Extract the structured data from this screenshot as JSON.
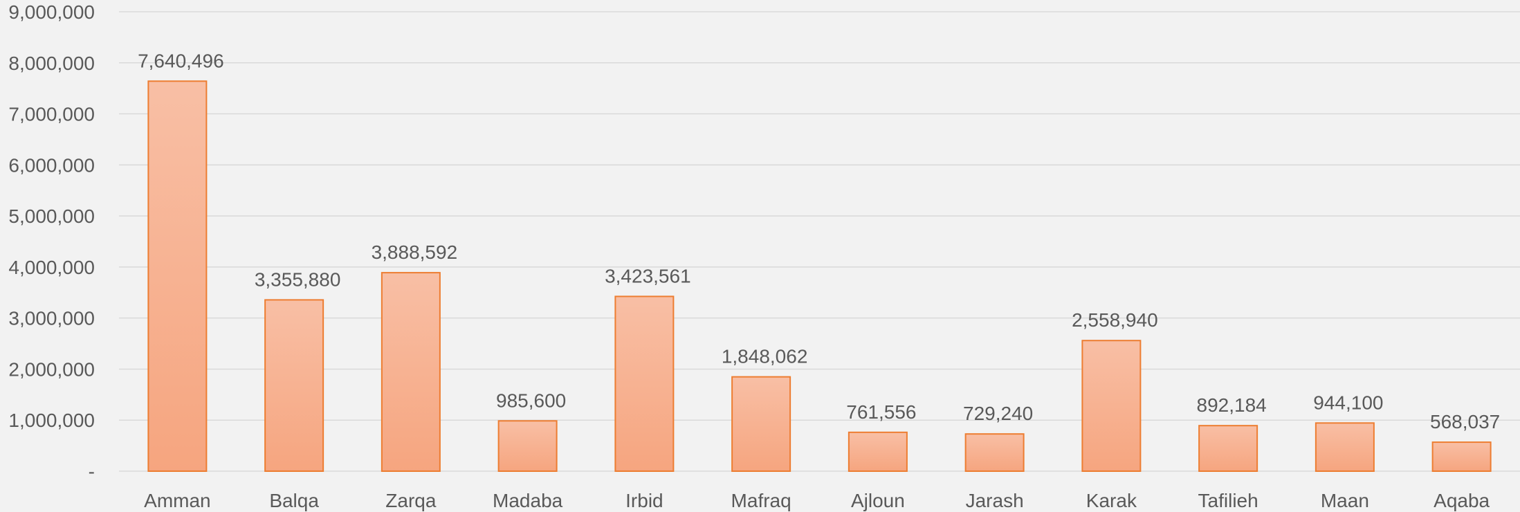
{
  "chart_data": {
    "type": "bar",
    "categories": [
      "Amman",
      "Balqa",
      "Zarqa",
      "Madaba",
      "Irbid",
      "Mafraq",
      "Ajloun",
      "Jarash",
      "Karak",
      "Tafilieh",
      "Maan",
      "Aqaba"
    ],
    "values": [
      7640496,
      3355880,
      3888592,
      985600,
      3423561,
      1848062,
      761556,
      729240,
      2558940,
      892184,
      944100,
      568037
    ],
    "value_labels": [
      "7,640,496",
      "3,355,880",
      "3,888,592",
      "985,600",
      "3,423,561",
      "1,848,062",
      "761,556",
      "729,240",
      "2,558,940",
      "892,184",
      "944,100",
      "568,037"
    ],
    "y_ticks": [
      0,
      1000000,
      2000000,
      3000000,
      4000000,
      5000000,
      6000000,
      7000000,
      8000000,
      9000000
    ],
    "y_tick_labels": [
      "-",
      "1,000,000",
      "2,000,000",
      "3,000,000",
      "4,000,000",
      "5,000,000",
      "6,000,000",
      "7,000,000",
      "8,000,000",
      "9,000,000"
    ],
    "ylim": [
      0,
      9000000
    ],
    "grid": true,
    "legend": "none",
    "title": "",
    "xlabel": "",
    "ylabel": ""
  },
  "colors": {
    "bar_fill_top": "#f8bfa5",
    "bar_fill_bottom": "#f6a57f",
    "bar_stroke": "#ed7d31",
    "background": "#f2f2f2"
  }
}
